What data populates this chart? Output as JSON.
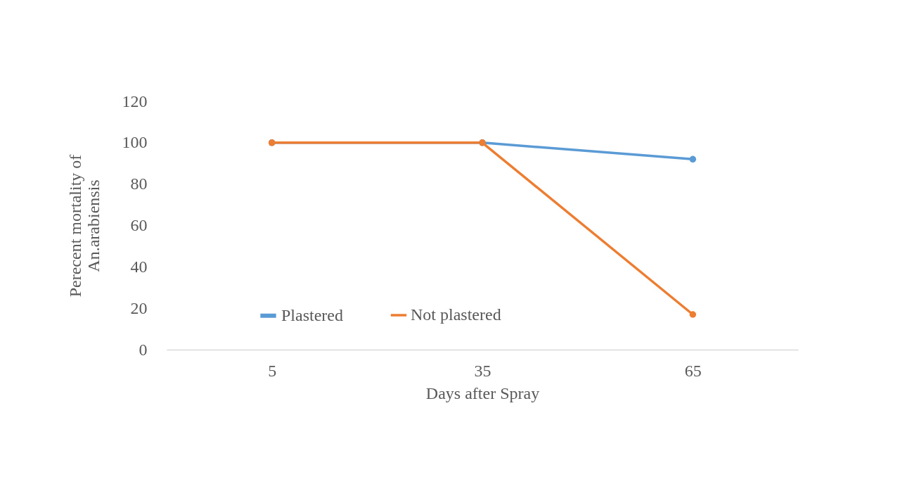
{
  "chart_data": {
    "type": "line",
    "xlabel": "Days after Spray",
    "ylabel": "Perecent mortality of An.arabiensis",
    "categories": [
      "5",
      "35",
      "65"
    ],
    "series": [
      {
        "name": "Plastered",
        "color": "#5b9bd5",
        "values": [
          100,
          100,
          92
        ]
      },
      {
        "name": "Not plastered",
        "color": "#ed7d31",
        "values": [
          100,
          100,
          17
        ]
      }
    ],
    "ylim": [
      0,
      120
    ],
    "yticks": [
      0,
      20,
      40,
      60,
      80,
      100,
      120
    ],
    "grid": false,
    "legend": "bottom",
    "marker": "circle",
    "line_style": "solid"
  }
}
